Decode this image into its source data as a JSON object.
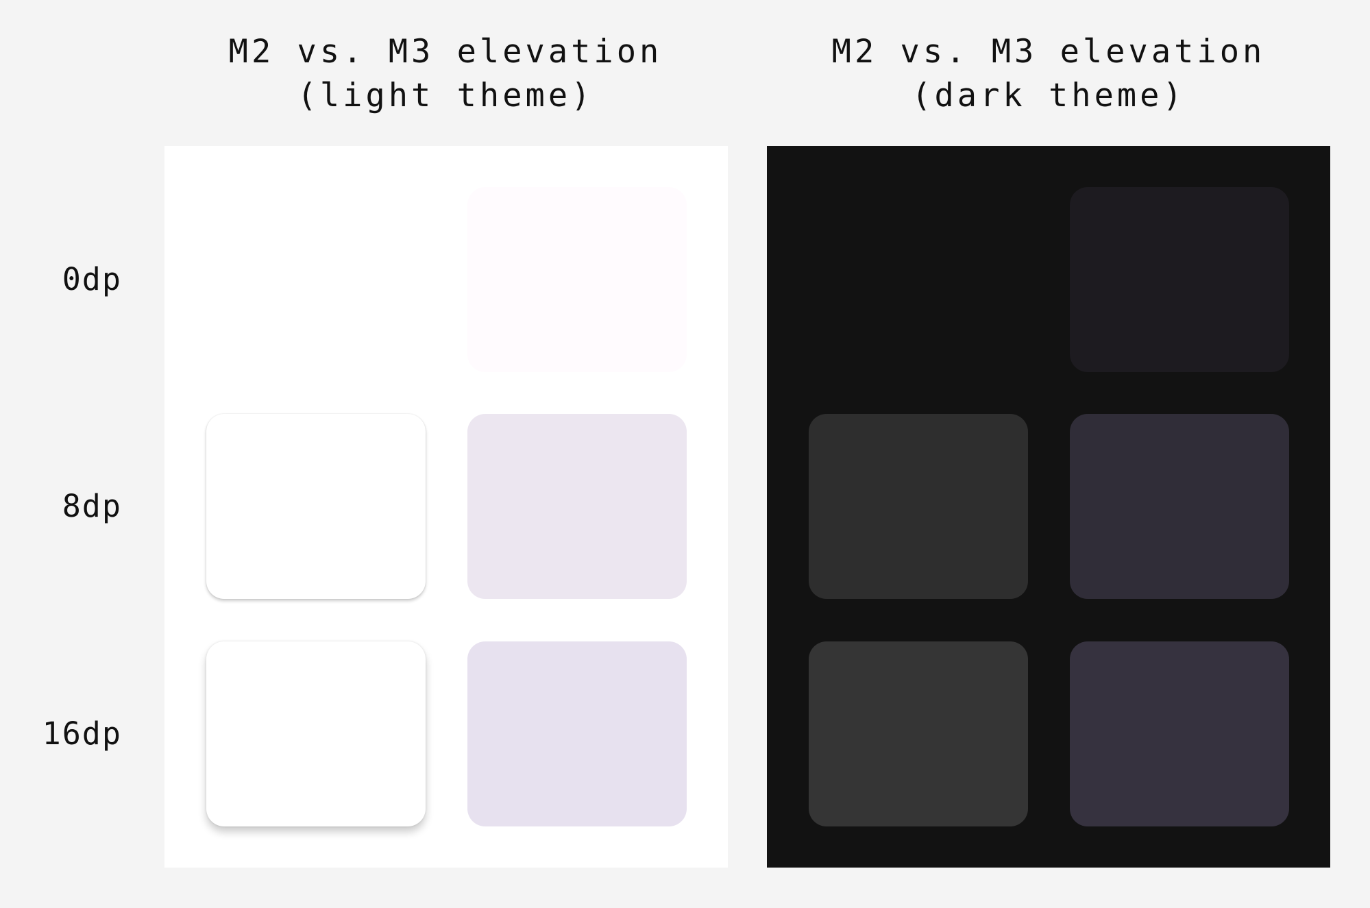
{
  "light_panel": {
    "title_line1": "M2 vs. M3 elevation",
    "title_line2": "(light theme)",
    "background": "#ffffff",
    "cards": {
      "m3_0dp": "#fffbfe",
      "m2_8dp": "#ffffff",
      "m3_8dp": "#ece6f0",
      "m2_16dp": "#ffffff",
      "m3_16dp": "#e7e1ef"
    }
  },
  "dark_panel": {
    "title_line1": "M2 vs. M3 elevation",
    "title_line2": "(dark theme)",
    "background": "#121212",
    "cards": {
      "m3_0dp": "#1d1b20",
      "m2_8dp": "#2e2e2e",
      "m3_8dp": "#302d38",
      "m2_16dp": "#353535",
      "m3_16dp": "#36323f"
    }
  },
  "row_labels": [
    "0dp",
    "8dp",
    "16dp"
  ]
}
